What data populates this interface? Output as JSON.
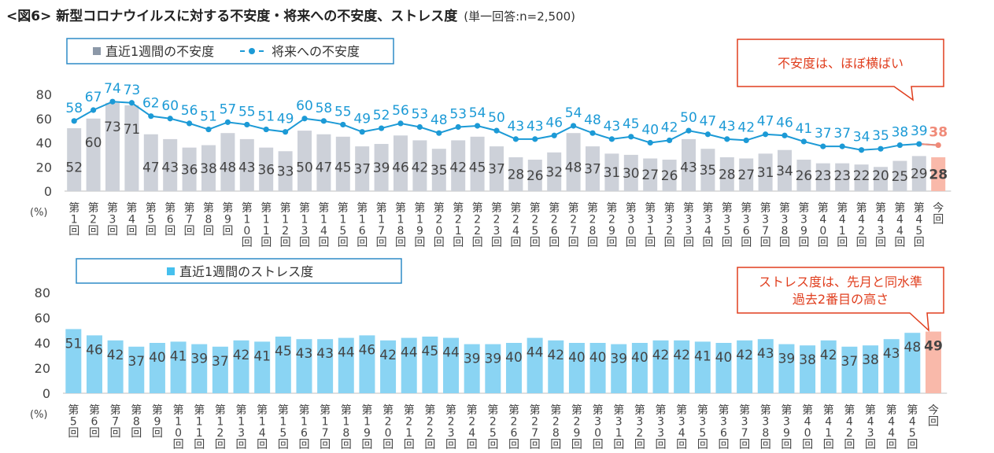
{
  "title": "<図6> 新型コロナウイルスに対する不安度・将来への不安度、ストレス度",
  "title_note": "(単一回答:n=2,500)",
  "chart_data": [
    {
      "type": "bar",
      "legend": [
        "■ 直近1週間の不安度",
        "- ● - 将来への不安度"
      ],
      "yunit": "(%)",
      "ylim": [
        0,
        80
      ],
      "yticks": [
        0,
        20,
        40,
        60,
        80
      ],
      "grid": false,
      "categories": [
        "第1回",
        "第2回",
        "第3回",
        "第4回",
        "第5回",
        "第6回",
        "第7回",
        "第8回",
        "第9回",
        "第10回",
        "第11回",
        "第12回",
        "第13回",
        "第14回",
        "第15回",
        "第16回",
        "第17回",
        "第18回",
        "第19回",
        "第20回",
        "第21回",
        "第22回",
        "第23回",
        "第24回",
        "第25回",
        "第26回",
        "第27回",
        "第28回",
        "第29回",
        "第30回",
        "第31回",
        "第32回",
        "第33回",
        "第34回",
        "第35回",
        "第36回",
        "第37回",
        "第38回",
        "第39回",
        "第40回",
        "第41回",
        "第42回",
        "第43回",
        "第44回",
        "第45回",
        "今回"
      ],
      "series": [
        {
          "name": "直近1週間の不安度",
          "type": "bar",
          "color": "#cdd1d9",
          "highlight_color": "#f9b9aa",
          "values": [
            52,
            60,
            73,
            71,
            47,
            43,
            36,
            38,
            48,
            43,
            36,
            33,
            50,
            47,
            45,
            37,
            39,
            46,
            42,
            35,
            42,
            45,
            37,
            28,
            26,
            32,
            48,
            37,
            31,
            30,
            27,
            26,
            43,
            35,
            28,
            27,
            31,
            34,
            26,
            23,
            23,
            22,
            20,
            25,
            29,
            28
          ]
        },
        {
          "name": "将来への不安度",
          "type": "line",
          "color": "#1c9ad6",
          "highlight_color": "#f08a78",
          "values": [
            58,
            67,
            74,
            73,
            62,
            60,
            56,
            51,
            57,
            55,
            51,
            49,
            60,
            58,
            55,
            49,
            52,
            56,
            53,
            48,
            53,
            54,
            50,
            43,
            43,
            46,
            54,
            48,
            43,
            45,
            40,
            42,
            50,
            47,
            43,
            42,
            47,
            46,
            41,
            37,
            37,
            34,
            35,
            38,
            39,
            38
          ]
        }
      ],
      "annotation": "不安度は、ほぼ横ばい"
    },
    {
      "type": "bar",
      "legend": [
        "■ 直近1週間のストレス度"
      ],
      "yunit": "(%)",
      "ylim": [
        0,
        80
      ],
      "yticks": [
        0,
        20,
        40,
        60,
        80
      ],
      "grid": false,
      "categories": [
        "第5回",
        "第6回",
        "第7回",
        "第8回",
        "第9回",
        "第10回",
        "第11回",
        "第12回",
        "第13回",
        "第14回",
        "第15回",
        "第16回",
        "第17回",
        "第18回",
        "第19回",
        "第20回",
        "第21回",
        "第22回",
        "第23回",
        "第24回",
        "第25回",
        "第26回",
        "第27回",
        "第28回",
        "第29回",
        "第30回",
        "第31回",
        "第32回",
        "第33回",
        "第34回",
        "第35回",
        "第36回",
        "第37回",
        "第38回",
        "第39回",
        "第40回",
        "第41回",
        "第42回",
        "第43回",
        "第44回",
        "第45回",
        "今回"
      ],
      "series": [
        {
          "name": "直近1週間のストレス度",
          "type": "bar",
          "color": "#8ad4f3",
          "highlight_color": "#f9b9aa",
          "values": [
            51,
            46,
            42,
            37,
            40,
            41,
            39,
            37,
            42,
            41,
            45,
            43,
            43,
            44,
            46,
            42,
            44,
            45,
            44,
            39,
            39,
            40,
            44,
            42,
            40,
            40,
            39,
            40,
            42,
            42,
            41,
            40,
            42,
            43,
            39,
            38,
            42,
            37,
            38,
            43,
            48,
            49
          ]
        }
      ],
      "annotation": [
        "ストレス度は、先月と同水準",
        "過去2番目の高さ"
      ]
    }
  ]
}
